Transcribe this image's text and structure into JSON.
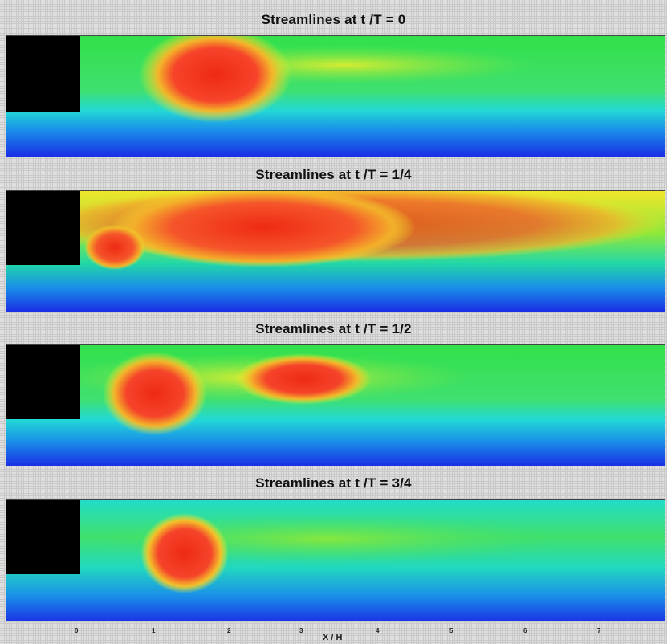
{
  "panels": [
    {
      "title": "Streamlines at  t /T = 0"
    },
    {
      "title": "Streamlines at  t /T = 1/4"
    },
    {
      "title": "Streamlines at  t /T = 1/2"
    },
    {
      "title": "Streamlines at  t /T = 3/4"
    }
  ],
  "x_axis": {
    "label": "X / H",
    "ticks": [
      "0",
      "1",
      "2",
      "3",
      "4",
      "5",
      "6",
      "7"
    ]
  },
  "colors": {
    "obstacle": "#000000",
    "low": "#1a2ee6",
    "mid_low": "#1fd6e0",
    "mid": "#2fe34a",
    "mid_high": "#f2f22a",
    "high": "#f52a1a"
  }
}
